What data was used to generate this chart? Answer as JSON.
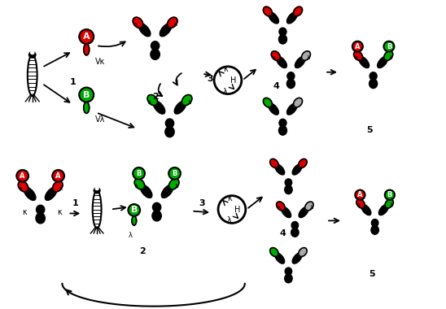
{
  "bg_color": "#ffffff",
  "red_color": "#dd0000",
  "green_color": "#00aa00",
  "black_color": "#000000",
  "gray_color": "#aaaaaa",
  "white_color": "#ffffff",
  "label_A": "A",
  "label_B": "B",
  "label_Vk": "Vκ",
  "label_Vl": "Vλ",
  "label_k": "κ",
  "label_l": "λ",
  "label_H": "H"
}
